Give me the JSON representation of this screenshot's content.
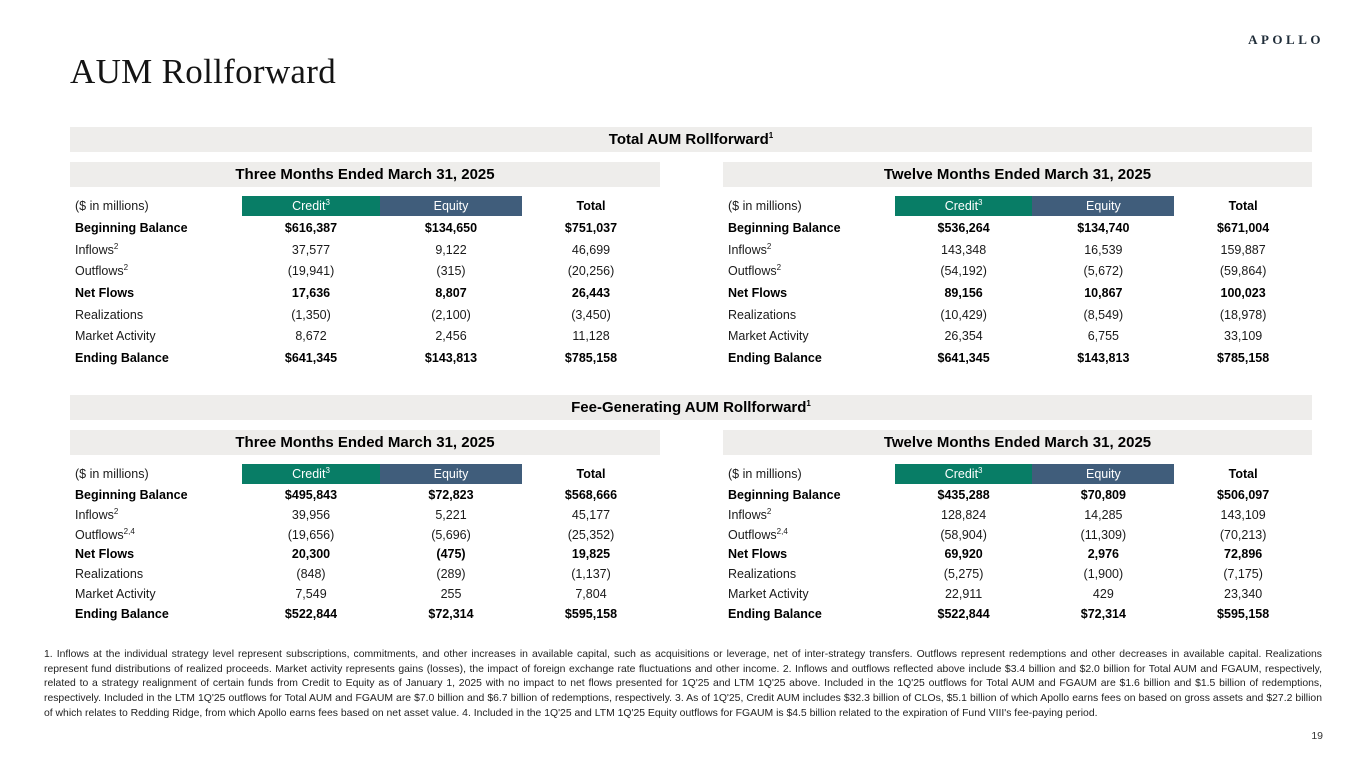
{
  "page": {
    "logo": "APOLLO",
    "title": "AUM Rollforward",
    "page_number": "19"
  },
  "colors": {
    "credit_header_bg": "#087d66",
    "equity_header_bg": "#405d7b",
    "band_bg": "#eeedeb"
  },
  "sections": [
    {
      "title": "Total AUM Rollforward",
      "title_sup": "1",
      "tables": [
        {
          "period": "Three Months Ended March 31, 2025",
          "unit_label": "($ in millions)",
          "columns": [
            {
              "label": "Credit",
              "sup": "3"
            },
            {
              "label": "Equity",
              "sup": ""
            },
            {
              "label": "Total",
              "sup": ""
            }
          ],
          "rows": [
            {
              "label": "Beginning Balance",
              "sup": "",
              "bold": true,
              "values": [
                "$616,387",
                "$134,650",
                "$751,037"
              ]
            },
            {
              "label": "Inflows",
              "sup": "2",
              "bold": false,
              "values": [
                "37,577",
                "9,122",
                "46,699"
              ]
            },
            {
              "label": "Outflows",
              "sup": "2",
              "bold": false,
              "values": [
                "(19,941)",
                "(315)",
                "(20,256)"
              ]
            },
            {
              "label": "Net Flows",
              "sup": "",
              "bold": true,
              "values": [
                "17,636",
                "8,807",
                "26,443"
              ]
            },
            {
              "label": "Realizations",
              "sup": "",
              "bold": false,
              "values": [
                "(1,350)",
                "(2,100)",
                "(3,450)"
              ]
            },
            {
              "label": "Market Activity",
              "sup": "",
              "bold": false,
              "values": [
                "8,672",
                "2,456",
                "11,128"
              ]
            },
            {
              "label": "Ending Balance",
              "sup": "",
              "bold": true,
              "values": [
                "$641,345",
                "$143,813",
                "$785,158"
              ]
            }
          ]
        },
        {
          "period": "Twelve Months Ended March 31, 2025",
          "unit_label": "($ in millions)",
          "columns": [
            {
              "label": "Credit",
              "sup": "3"
            },
            {
              "label": "Equity",
              "sup": ""
            },
            {
              "label": "Total",
              "sup": ""
            }
          ],
          "rows": [
            {
              "label": "Beginning Balance",
              "sup": "",
              "bold": true,
              "values": [
                "$536,264",
                "$134,740",
                "$671,004"
              ]
            },
            {
              "label": "Inflows",
              "sup": "2",
              "bold": false,
              "values": [
                "143,348",
                "16,539",
                "159,887"
              ]
            },
            {
              "label": "Outflows",
              "sup": "2",
              "bold": false,
              "values": [
                "(54,192)",
                "(5,672)",
                "(59,864)"
              ]
            },
            {
              "label": "Net Flows",
              "sup": "",
              "bold": true,
              "values": [
                "89,156",
                "10,867",
                "100,023"
              ]
            },
            {
              "label": "Realizations",
              "sup": "",
              "bold": false,
              "values": [
                "(10,429)",
                "(8,549)",
                "(18,978)"
              ]
            },
            {
              "label": "Market Activity",
              "sup": "",
              "bold": false,
              "values": [
                "26,354",
                "6,755",
                "33,109"
              ]
            },
            {
              "label": "Ending Balance",
              "sup": "",
              "bold": true,
              "values": [
                "$641,345",
                "$143,813",
                "$785,158"
              ]
            }
          ]
        }
      ]
    },
    {
      "title": "Fee-Generating AUM Rollforward",
      "title_sup": "1",
      "tables": [
        {
          "period": "Three Months Ended March 31, 2025",
          "unit_label": "($ in millions)",
          "columns": [
            {
              "label": "Credit",
              "sup": "3"
            },
            {
              "label": "Equity",
              "sup": ""
            },
            {
              "label": "Total",
              "sup": ""
            }
          ],
          "rows": [
            {
              "label": "Beginning Balance",
              "sup": "",
              "bold": true,
              "values": [
                "$495,843",
                "$72,823",
                "$568,666"
              ]
            },
            {
              "label": "Inflows",
              "sup": "2",
              "bold": false,
              "values": [
                "39,956",
                "5,221",
                "45,177"
              ]
            },
            {
              "label": "Outflows",
              "sup": "2,4",
              "bold": false,
              "values": [
                "(19,656)",
                "(5,696)",
                "(25,352)"
              ]
            },
            {
              "label": "Net Flows",
              "sup": "",
              "bold": true,
              "values": [
                "20,300",
                "(475)",
                "19,825"
              ]
            },
            {
              "label": "Realizations",
              "sup": "",
              "bold": false,
              "values": [
                "(848)",
                "(289)",
                "(1,137)"
              ]
            },
            {
              "label": "Market Activity",
              "sup": "",
              "bold": false,
              "values": [
                "7,549",
                "255",
                "7,804"
              ]
            },
            {
              "label": "Ending Balance",
              "sup": "",
              "bold": true,
              "values": [
                "$522,844",
                "$72,314",
                "$595,158"
              ]
            }
          ]
        },
        {
          "period": "Twelve Months Ended March 31, 2025",
          "unit_label": "($ in millions)",
          "columns": [
            {
              "label": "Credit",
              "sup": "3"
            },
            {
              "label": "Equity",
              "sup": ""
            },
            {
              "label": "Total",
              "sup": ""
            }
          ],
          "rows": [
            {
              "label": "Beginning Balance",
              "sup": "",
              "bold": true,
              "values": [
                "$435,288",
                "$70,809",
                "$506,097"
              ]
            },
            {
              "label": "Inflows",
              "sup": "2",
              "bold": false,
              "values": [
                "128,824",
                "14,285",
                "143,109"
              ]
            },
            {
              "label": "Outflows",
              "sup": "2,4",
              "bold": false,
              "values": [
                "(58,904)",
                "(11,309)",
                "(70,213)"
              ]
            },
            {
              "label": "Net Flows",
              "sup": "",
              "bold": true,
              "values": [
                "69,920",
                "2,976",
                "72,896"
              ]
            },
            {
              "label": "Realizations",
              "sup": "",
              "bold": false,
              "values": [
                "(5,275)",
                "(1,900)",
                "(7,175)"
              ]
            },
            {
              "label": "Market Activity",
              "sup": "",
              "bold": false,
              "values": [
                "22,911",
                "429",
                "23,340"
              ]
            },
            {
              "label": "Ending Balance",
              "sup": "",
              "bold": true,
              "values": [
                "$522,844",
                "$72,314",
                "$595,158"
              ]
            }
          ]
        }
      ]
    }
  ],
  "footnotes": "1. Inflows at the individual strategy level represent subscriptions, commitments, and other increases in available capital, such as acquisitions or leverage, net of inter-strategy transfers. Outflows represent redemptions and other decreases in available capital. Realizations represent fund distributions of realized proceeds. Market activity represents gains (losses), the impact of foreign exchange rate fluctuations and other income. 2. Inflows and outflows reflected above include $3.4 billion and $2.0 billion for Total AUM and FGAUM, respectively, related to a strategy realignment of certain funds from Credit to Equity as of January 1, 2025 with no impact to net flows presented for 1Q'25 and LTM 1Q'25 above. Included in the 1Q'25 outflows for Total AUM and FGAUM are $1.6 billion and $1.5 billion of redemptions, respectively. Included in the LTM 1Q'25 outflows for Total AUM and FGAUM are $7.0 billion and $6.7 billion of redemptions, respectively. 3. As of 1Q'25, Credit AUM includes $32.3 billion of CLOs, $5.1 billion of which Apollo earns fees on based on gross assets and $27.2 billion of which relates to Redding Ridge, from which Apollo earns fees based on net asset value. 4. Included in the 1Q'25 and LTM 1Q'25 Equity outflows for FGAUM is $4.5 billion related to the expiration of Fund VIII's fee-paying period."
}
